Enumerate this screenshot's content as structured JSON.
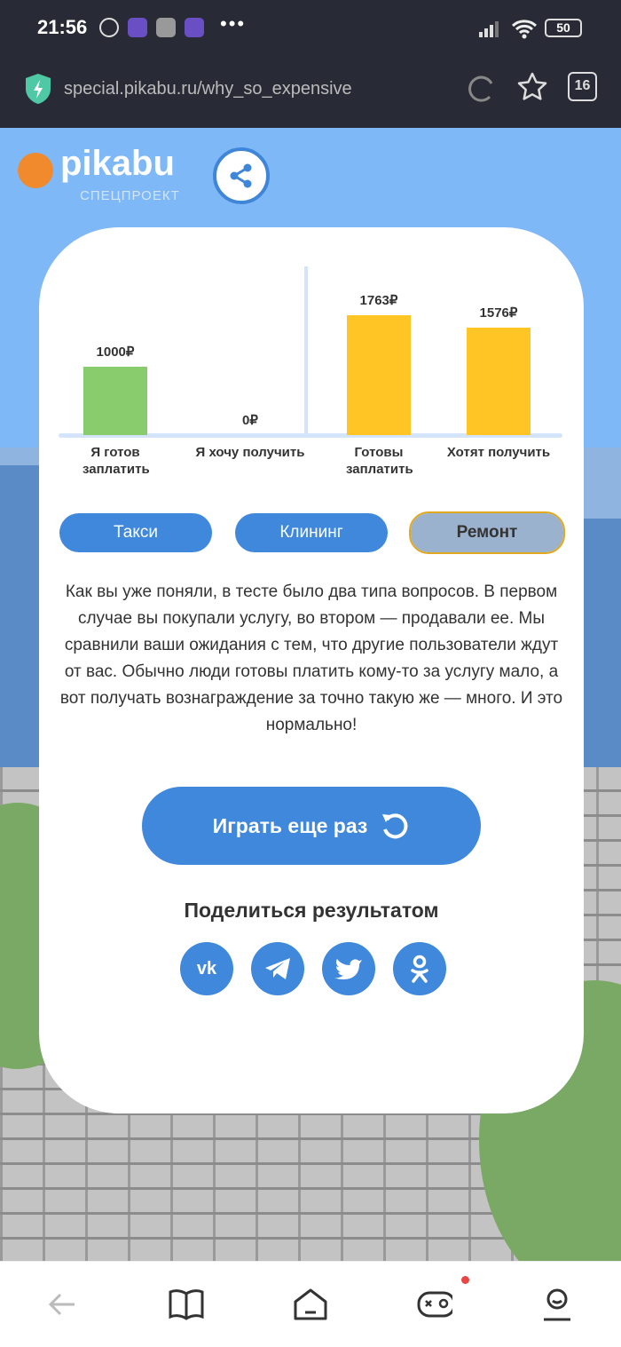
{
  "status_bar": {
    "time": "21:56",
    "battery": "50"
  },
  "browser": {
    "url": "special.pikabu.ru/why_so_expensive",
    "tab_count": "16"
  },
  "header": {
    "logo_text": "pikabu",
    "logo_sub": "СПЕЦПРОЕКТ"
  },
  "colors": {
    "accent": "#3f88dc",
    "green_bar": "#88cc6e",
    "yellow_bar": "#fec524",
    "sky": "#7fb8f7"
  },
  "chart_data": {
    "type": "bar",
    "categories": [
      "Я готов заплатить",
      "Я хочу получить",
      "Готовы заплатить",
      "Хотят получить"
    ],
    "values": [
      1000,
      0,
      1763,
      1576
    ],
    "value_labels": [
      "1000₽",
      "0₽",
      "1763₽",
      "1576₽"
    ],
    "colors": [
      "#88cc6e",
      "#88cc6e",
      "#fec524",
      "#fec524"
    ],
    "grid": false
  },
  "categories": [
    "Такси",
    "Клининг",
    "Ремонт"
  ],
  "active_category": "Ремонт",
  "description": "Как вы уже поняли, в тесте было два типа вопросов. В первом случае вы покупали услугу, во втором — продавали ее. Мы сравнили ваши ожидания с тем, что другие пользователи ждут от вас. Обычно люди готовы платить кому-то за услугу мало, а вот получать вознаграждение за точно такую же — много. И это нормально!",
  "play_again": "Играть еще раз",
  "share_title": "Поделиться результатом",
  "share_networks": [
    "vk-icon",
    "telegram-icon",
    "twitter-icon",
    "odnoklassniki-icon"
  ],
  "social_glyphs": {
    "vk": "vk"
  }
}
